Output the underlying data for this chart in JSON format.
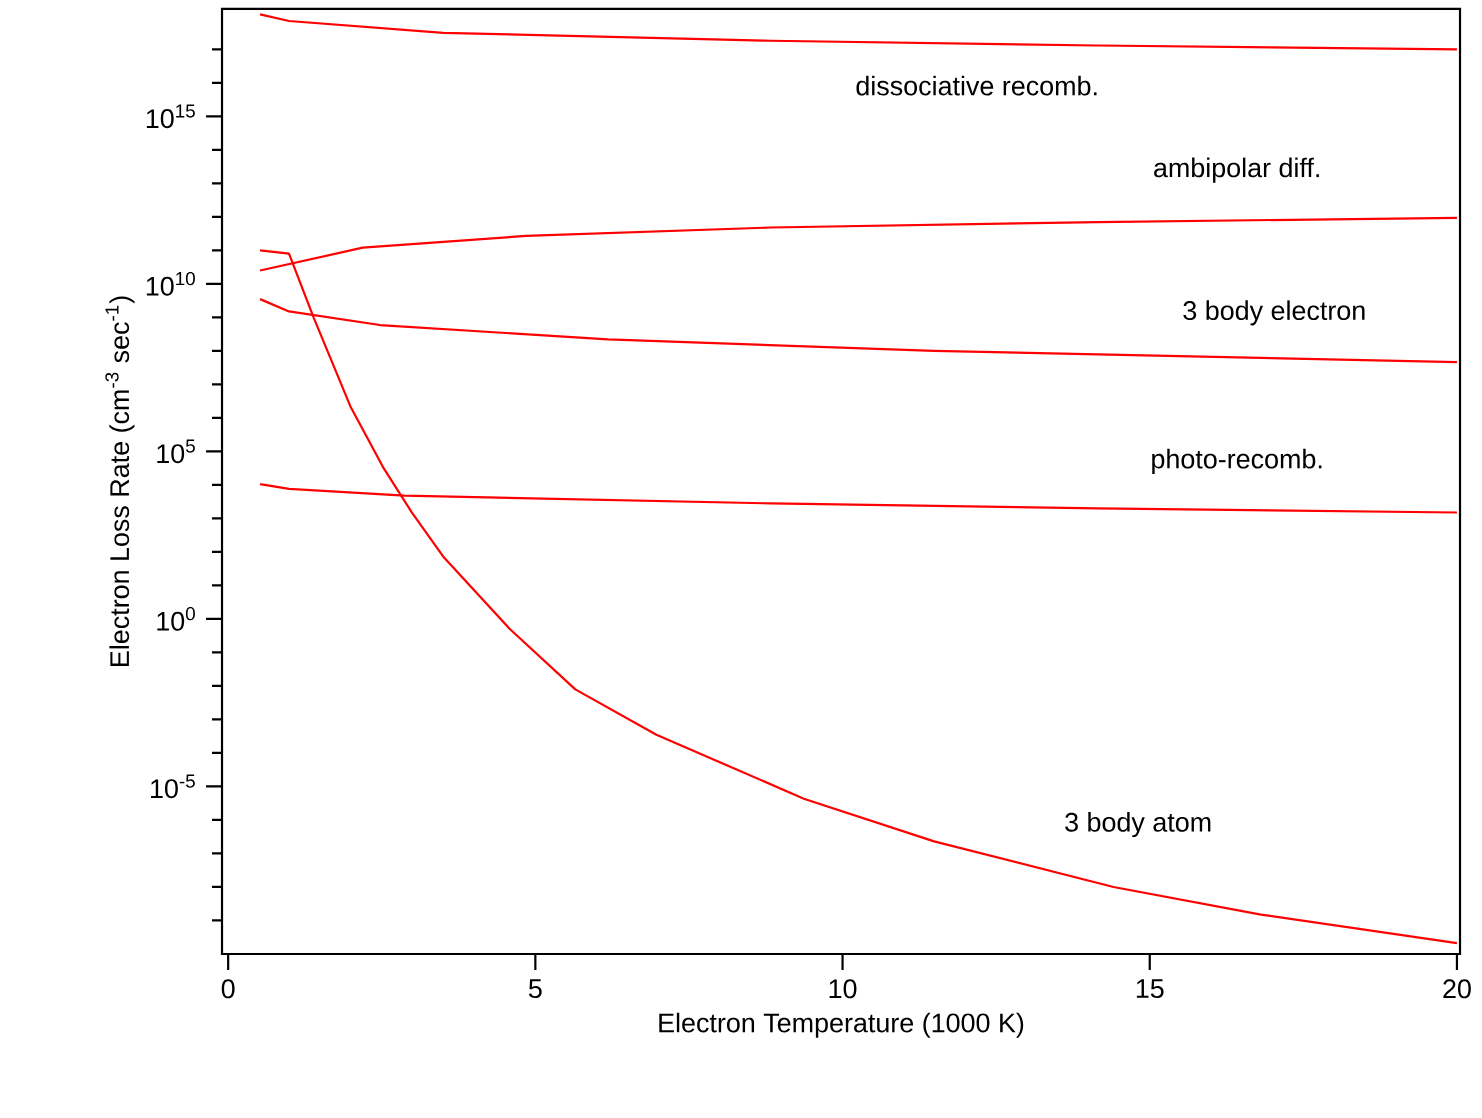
{
  "chart_data": {
    "type": "line",
    "xlabel": "Electron Temperature (1000 K)",
    "ylabel": "Electron Loss Rate (cm$^{-3}$ sec$^{-1}$)",
    "log": "y",
    "marker": "none",
    "line_style": "solid",
    "grid": false,
    "xlim": [
      -0.1,
      20.05
    ],
    "ylim": [
      1e-10,
      1.6e+18
    ],
    "xticks": [
      0,
      5,
      10,
      15,
      20
    ],
    "yticks": [
      {
        "value": 1e-09,
        "label": null
      },
      {
        "value": 1e-08,
        "label": null
      },
      {
        "value": 1e-07,
        "label": null
      },
      {
        "value": 1e-06,
        "label": null
      },
      {
        "value": 1e-05,
        "label": "10$^{-5}$"
      },
      {
        "value": 0.0001,
        "label": null
      },
      {
        "value": 0.001,
        "label": null
      },
      {
        "value": 0.01,
        "label": null
      },
      {
        "value": 0.1,
        "label": null
      },
      {
        "value": 1,
        "label": "10$^{0}$"
      },
      {
        "value": 10,
        "label": null
      },
      {
        "value": 100,
        "label": null
      },
      {
        "value": 1000.0,
        "label": null
      },
      {
        "value": 10000.0,
        "label": null
      },
      {
        "value": 100000.0,
        "label": "10$^{5}$"
      },
      {
        "value": 1000000.0,
        "label": null
      },
      {
        "value": 10000000.0,
        "label": null
      },
      {
        "value": 100000000.0,
        "label": null
      },
      {
        "value": 1000000000.0,
        "label": null
      },
      {
        "value": 10000000000.0,
        "label": "10$^{10}$"
      },
      {
        "value": 100000000000.0,
        "label": null
      },
      {
        "value": 1000000000000.0,
        "label": null
      },
      {
        "value": 10000000000000.0,
        "label": null
      },
      {
        "value": 100000000000000.0,
        "label": null
      },
      {
        "value": 1000000000000000.0,
        "label": "10$^{15}$"
      },
      {
        "value": 1e+16,
        "label": null
      },
      {
        "value": 1e+17,
        "label": null
      }
    ],
    "series": [
      {
        "name": "dissociative recomb.",
        "color": "#ff0000",
        "x": [
          0.52,
          0.99,
          3.5,
          8.83,
          14.15,
          20
        ],
        "values": [
          1.1e+18,
          7e+17,
          3.1e+17,
          1.8e+17,
          1.3e+17,
          1e+17
        ]
      },
      {
        "name": "ambipolar diff.",
        "color": "#ff0000",
        "x": [
          0.52,
          2.19,
          4.85,
          8.83,
          14.15,
          20
        ],
        "values": [
          25000000000.0,
          120000000000.0,
          270000000000.0,
          480000000000.0,
          700000000000.0,
          930000000000.0
        ]
      },
      {
        "name": "3 body electron",
        "color": "#ff0000",
        "x": [
          0.52,
          0.99,
          2.47,
          6.18,
          11.49,
          15.48,
          20
        ],
        "values": [
          3500000000.0,
          1500000000.0,
          590000000.0,
          220000000.0,
          100000000.0,
          70000000.0,
          46000000.0
        ]
      },
      {
        "name": "photo-recomb.",
        "color": "#ff0000",
        "x": [
          0.52,
          0.99,
          2.87,
          8.83,
          14.15,
          20
        ],
        "values": [
          10500.0,
          7600.0,
          4800.0,
          2800.0,
          2000.0,
          1500.0
        ]
      },
      {
        "name": "3 body atom",
        "color": "#ff0000",
        "x": [
          0.52,
          0.99,
          1.39,
          1.99,
          2.52,
          2.98,
          3.51,
          4.58,
          5.65,
          6.97,
          9.37,
          11.49,
          14.41,
          16.81,
          20
        ],
        "values": [
          100000000000.0,
          80000000000.0,
          1000000000.0,
          2200000.0,
          34000.0,
          1600.0,
          69,
          0.51,
          0.0079,
          0.00035,
          4.3e-06,
          2.3e-07,
          1e-08,
          1.5e-09,
          2.1e-10
        ]
      }
    ]
  }
}
